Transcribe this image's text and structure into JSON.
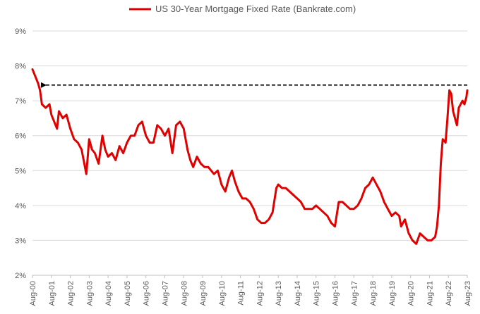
{
  "chart_data": {
    "type": "line",
    "title": "",
    "xlabel": "",
    "ylabel": "",
    "series": [
      {
        "name": "US 30-Year Mortgage Fixed Rate (Bankrate.com)",
        "color": "#e00000",
        "x": [
          2000.6,
          2000.75,
          2000.9,
          2001.0,
          2001.1,
          2001.3,
          2001.5,
          2001.6,
          2001.75,
          2001.9,
          2002.0,
          2002.2,
          2002.4,
          2002.6,
          2002.8,
          2003.0,
          2003.2,
          2003.45,
          2003.6,
          2003.75,
          2003.9,
          2004.1,
          2004.3,
          2004.45,
          2004.6,
          2004.8,
          2005.0,
          2005.2,
          2005.4,
          2005.6,
          2005.8,
          2006.0,
          2006.2,
          2006.4,
          2006.6,
          2006.8,
          2007.0,
          2007.2,
          2007.4,
          2007.6,
          2007.8,
          2008.0,
          2008.2,
          2008.4,
          2008.6,
          2008.8,
          2008.95,
          2009.1,
          2009.3,
          2009.5,
          2009.7,
          2009.9,
          2010.2,
          2010.4,
          2010.6,
          2010.8,
          2011.0,
          2011.15,
          2011.3,
          2011.5,
          2011.7,
          2011.9,
          2012.1,
          2012.3,
          2012.5,
          2012.7,
          2012.9,
          2013.1,
          2013.3,
          2013.5,
          2013.6,
          2013.8,
          2014.0,
          2014.2,
          2014.4,
          2014.6,
          2014.8,
          2015.0,
          2015.2,
          2015.4,
          2015.6,
          2015.8,
          2016.0,
          2016.2,
          2016.4,
          2016.6,
          2016.8,
          2017.0,
          2017.2,
          2017.4,
          2017.6,
          2017.8,
          2018.0,
          2018.2,
          2018.4,
          2018.6,
          2018.8,
          2019.0,
          2019.2,
          2019.4,
          2019.6,
          2019.8,
          2020.0,
          2020.1,
          2020.3,
          2020.5,
          2020.7,
          2020.9,
          2021.1,
          2021.3,
          2021.5,
          2021.7,
          2021.9,
          2022.0,
          2022.1,
          2022.2,
          2022.3,
          2022.45,
          2022.55,
          2022.65,
          2022.75,
          2022.85,
          2022.95,
          2023.05,
          2023.15,
          2023.25,
          2023.35,
          2023.45,
          2023.55,
          2023.6
        ],
        "y": [
          7.9,
          7.7,
          7.5,
          7.3,
          6.9,
          6.8,
          6.9,
          6.6,
          6.4,
          6.2,
          6.7,
          6.5,
          6.6,
          6.2,
          5.9,
          5.8,
          5.6,
          4.9,
          5.9,
          5.6,
          5.5,
          5.2,
          6.0,
          5.6,
          5.4,
          5.5,
          5.3,
          5.7,
          5.5,
          5.8,
          6.0,
          6.0,
          6.3,
          6.4,
          6.0,
          5.8,
          5.8,
          6.3,
          6.2,
          6.0,
          6.2,
          5.5,
          6.3,
          6.4,
          6.2,
          5.6,
          5.3,
          5.1,
          5.4,
          5.2,
          5.1,
          5.1,
          4.9,
          5.0,
          4.6,
          4.4,
          4.8,
          5.0,
          4.7,
          4.4,
          4.2,
          4.2,
          4.1,
          3.9,
          3.6,
          3.5,
          3.5,
          3.6,
          3.8,
          4.5,
          4.6,
          4.5,
          4.5,
          4.4,
          4.3,
          4.2,
          4.1,
          3.9,
          3.9,
          3.9,
          4.0,
          3.9,
          3.8,
          3.7,
          3.5,
          3.4,
          4.1,
          4.1,
          4.0,
          3.9,
          3.9,
          4.0,
          4.2,
          4.5,
          4.6,
          4.8,
          4.6,
          4.4,
          4.1,
          3.9,
          3.7,
          3.8,
          3.7,
          3.4,
          3.6,
          3.2,
          3.0,
          2.9,
          3.2,
          3.1,
          3.0,
          3.0,
          3.1,
          3.4,
          4.0,
          5.2,
          5.9,
          5.8,
          6.5,
          7.3,
          7.2,
          6.7,
          6.5,
          6.3,
          6.8,
          6.9,
          7.0,
          6.9,
          7.1,
          7.3
        ]
      }
    ],
    "xlim": [
      2000.6,
      2023.6
    ],
    "ylim": [
      2,
      9
    ],
    "x_ticks": [
      "Aug-00",
      "Aug-01",
      "Aug-02",
      "Aug-03",
      "Aug-04",
      "Aug-05",
      "Aug-06",
      "Aug-07",
      "Aug-08",
      "Aug-09",
      "Aug-10",
      "Aug-11",
      "Aug-12",
      "Aug-13",
      "Aug-14",
      "Aug-15",
      "Aug-16",
      "Aug-17",
      "Aug-18",
      "Aug-19",
      "Aug-20",
      "Aug-21",
      "Aug-22",
      "Aug-23"
    ],
    "y_ticks": [
      "2%",
      "3%",
      "4%",
      "5%",
      "6%",
      "7%",
      "8%",
      "9%"
    ],
    "grid": true,
    "legend_position": "top",
    "annotation": {
      "type": "dashed-arrow",
      "from": {
        "x": 2023.6,
        "y": 7.45
      },
      "to": {
        "x": 2000.9,
        "y": 7.45
      },
      "color": "#000000"
    }
  }
}
